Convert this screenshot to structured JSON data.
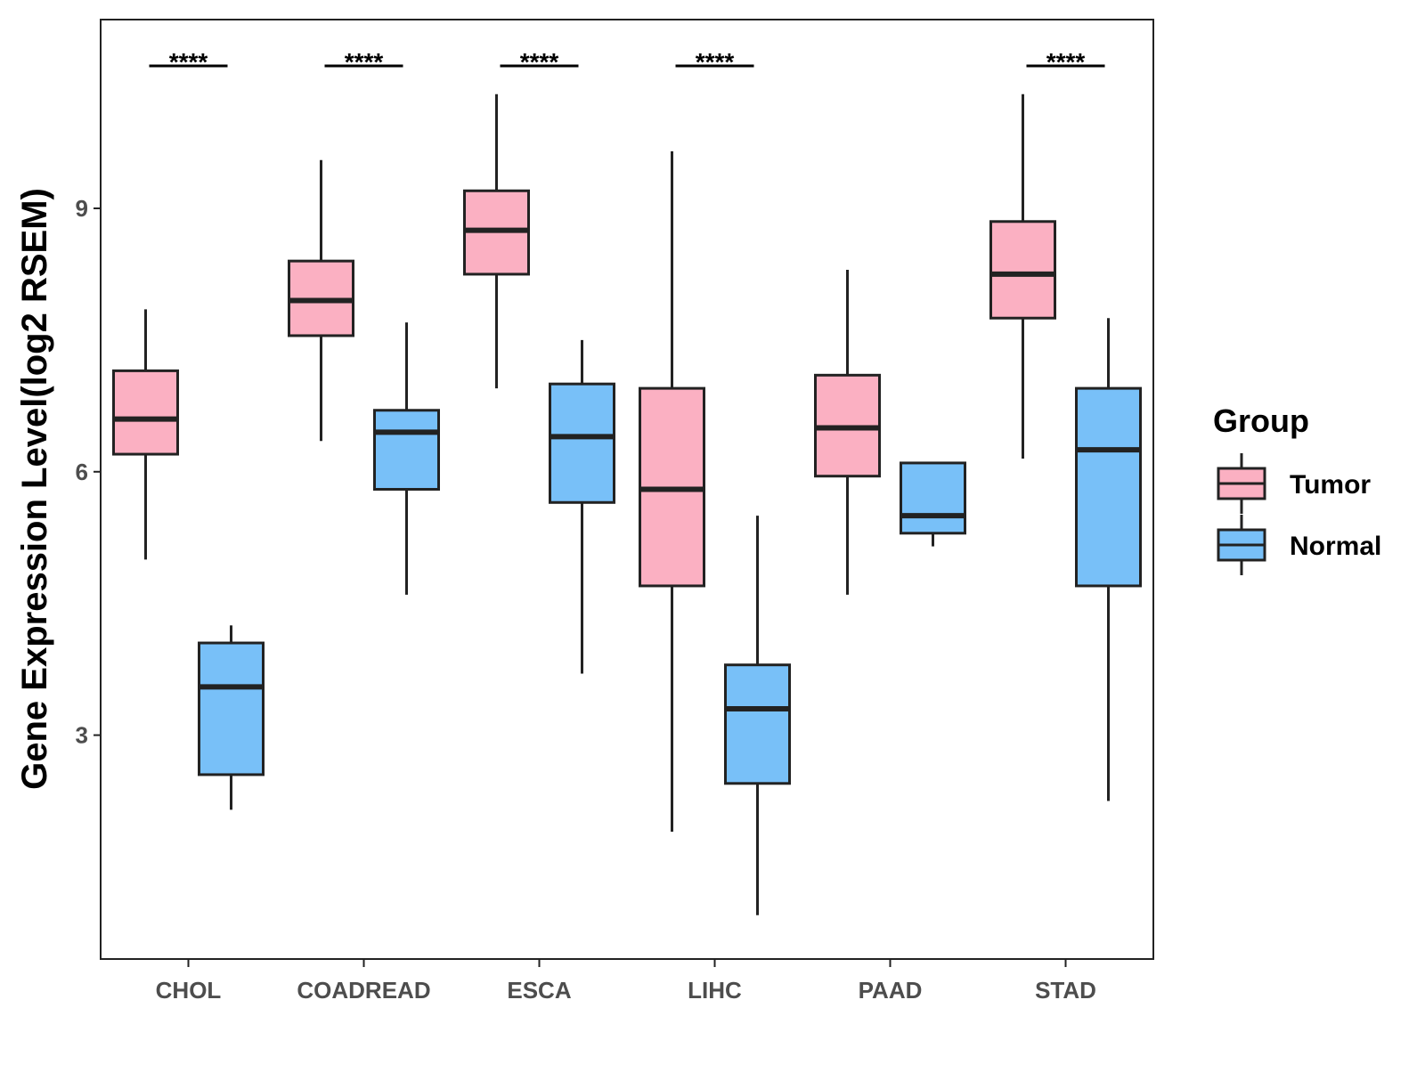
{
  "chart_data": {
    "type": "box",
    "title": "",
    "xlabel": "",
    "ylabel": "Gene Expression Level(log2 RSEM)",
    "ylim": [
      0.45,
      11.15
    ],
    "yticks": [
      3,
      6,
      9
    ],
    "categories": [
      "CHOL",
      "COADREAD",
      "ESCA",
      "LIHC",
      "PAAD",
      "STAD"
    ],
    "legend": {
      "title": "Group",
      "position": "right",
      "items": [
        {
          "name": "Tumor",
          "color": "#FBB0C2"
        },
        {
          "name": "Normal",
          "color": "#78C0F8"
        }
      ]
    },
    "series": [
      {
        "name": "Tumor",
        "color": "#FBB0C2",
        "boxes": [
          {
            "min": 5.0,
            "q1": 6.2,
            "median": 6.6,
            "q3": 7.15,
            "max": 7.85
          },
          {
            "min": 6.35,
            "q1": 7.55,
            "median": 7.95,
            "q3": 8.4,
            "max": 9.55
          },
          {
            "min": 6.95,
            "q1": 8.25,
            "median": 8.75,
            "q3": 9.2,
            "max": 10.3
          },
          {
            "min": 1.9,
            "q1": 4.7,
            "median": 5.8,
            "q3": 6.95,
            "max": 9.65
          },
          {
            "min": 4.6,
            "q1": 5.95,
            "median": 6.5,
            "q3": 7.1,
            "max": 8.3
          },
          {
            "min": 6.15,
            "q1": 7.75,
            "median": 8.25,
            "q3": 8.85,
            "max": 10.3
          }
        ]
      },
      {
        "name": "Normal",
        "color": "#78C0F8",
        "boxes": [
          {
            "min": 2.15,
            "q1": 2.55,
            "median": 3.55,
            "q3": 4.05,
            "max": 4.25
          },
          {
            "min": 4.6,
            "q1": 5.8,
            "median": 6.45,
            "q3": 6.7,
            "max": 7.7
          },
          {
            "min": 3.7,
            "q1": 5.65,
            "median": 6.4,
            "q3": 7.0,
            "max": 7.5
          },
          {
            "min": 0.95,
            "q1": 2.45,
            "median": 3.3,
            "q3": 3.8,
            "max": 5.5
          },
          {
            "min": 5.15,
            "q1": 5.3,
            "median": 5.5,
            "q3": 6.1,
            "max": 6.1
          },
          {
            "min": 2.25,
            "q1": 4.7,
            "median": 6.25,
            "q3": 6.95,
            "max": 7.75
          }
        ]
      }
    ],
    "annotations": [
      {
        "category": "CHOL",
        "label": "****"
      },
      {
        "category": "COADREAD",
        "label": "****"
      },
      {
        "category": "ESCA",
        "label": "****"
      },
      {
        "category": "LIHC",
        "label": "****"
      },
      {
        "category": "STAD",
        "label": "****"
      }
    ]
  }
}
